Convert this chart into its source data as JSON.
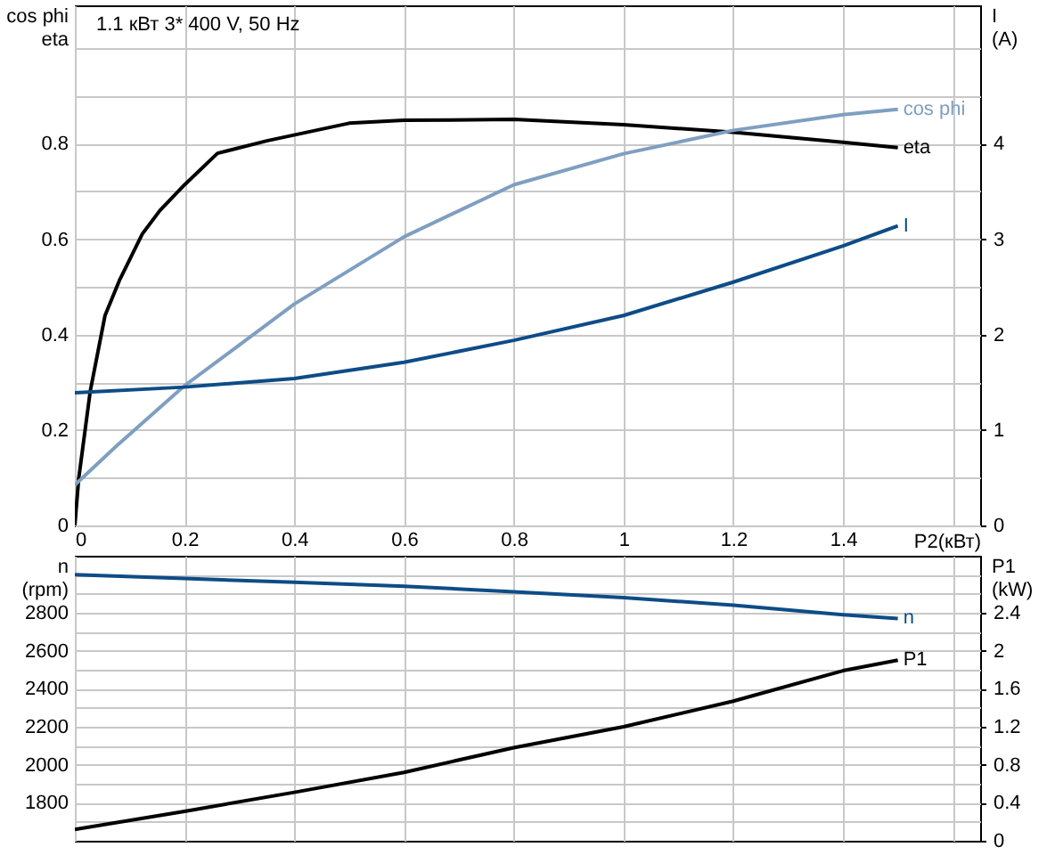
{
  "chart_data": [
    {
      "type": "line",
      "title": "1.1 кВт   3* 400 V, 50 Hz",
      "xlabel": "P2(кВт)",
      "ylabel": "cos phi\neta",
      "y2label": "I\n(A)",
      "xlim": [
        0,
        1.65
      ],
      "xticks": [
        0,
        0.2,
        0.4,
        0.6,
        0.8,
        1,
        1.2,
        1.4,
        {
          "value": 1.6,
          "label": null
        }
      ],
      "ylim": [
        0,
        1.09
      ],
      "yticks": [
        0,
        {
          "value": 0.1,
          "label": null
        },
        0.2,
        {
          "value": 0.3,
          "label": null
        },
        0.4,
        {
          "value": 0.5,
          "label": null
        },
        0.6,
        {
          "value": 0.7,
          "label": null
        },
        0.8,
        {
          "value": 0.9,
          "label": null
        },
        {
          "value": 1,
          "label": null
        }
      ],
      "y2lim": [
        0,
        5.45
      ],
      "y2ticks": [
        0,
        1,
        2,
        3,
        4
      ],
      "grid": true,
      "series": [
        {
          "name": "eta",
          "color": "#000000",
          "x": [
            0,
            0.007,
            0.028,
            0.055,
            0.081,
            0.123,
            0.155,
            0.2,
            0.26,
            0.35,
            0.5,
            0.6,
            0.8,
            1,
            1.2,
            1.4,
            1.5
          ],
          "values": [
            0,
            0.098,
            0.281,
            0.44,
            0.513,
            0.611,
            0.66,
            0.714,
            0.78,
            0.806,
            0.843,
            0.849,
            0.851,
            0.84,
            0.824,
            0.803,
            0.792
          ]
        },
        {
          "name": "cos phi",
          "color": "#7f9fc1",
          "x": [
            0,
            0.08,
            0.2,
            0.4,
            0.6,
            0.8,
            1,
            1.2,
            1.4,
            1.5
          ],
          "values": [
            0.085,
            0.171,
            0.293,
            0.464,
            0.605,
            0.714,
            0.779,
            0.828,
            0.861,
            0.872
          ]
        },
        {
          "name": "I",
          "color": "#0d4c87",
          "axis": "y2",
          "x": [
            0,
            0.2,
            0.4,
            0.6,
            0.8,
            1,
            1.2,
            1.4,
            1.5
          ],
          "values": [
            1.39,
            1.45,
            1.54,
            1.71,
            1.94,
            2.2,
            2.55,
            2.93,
            3.14
          ]
        }
      ]
    },
    {
      "type": "line",
      "ylabel": "n\n(rpm)",
      "y2label": "P1\n(kW)",
      "xlim": [
        0,
        1.65
      ],
      "xticks": [
        0,
        0.2,
        0.4,
        0.6,
        0.8,
        1,
        1.2,
        1.4,
        {
          "value": 1.6,
          "label": null
        }
      ],
      "ylim": [
        1600,
        3100
      ],
      "yticks": [
        {
          "value": 1700,
          "label": null
        },
        1800,
        {
          "value": 1900,
          "label": null
        },
        2000,
        {
          "value": 2100,
          "label": null
        },
        2200,
        {
          "value": 2300,
          "label": null
        },
        2400,
        {
          "value": 2500,
          "label": null
        },
        2600,
        {
          "value": 2700,
          "label": null
        },
        2800,
        {
          "value": 2900,
          "label": null
        },
        {
          "value": 3000,
          "label": null
        }
      ],
      "y2lim": [
        0,
        3
      ],
      "y2ticks": [
        0,
        0.4,
        0.8,
        1.2,
        1.6,
        2,
        2.4
      ],
      "grid": true,
      "tick_labels": "y",
      "series": [
        {
          "name": "n",
          "color": "#0d4c87",
          "x": [
            0,
            0.2,
            0.4,
            0.6,
            0.8,
            1,
            1.2,
            1.4,
            1.5
          ],
          "values": [
            3000,
            2980,
            2960,
            2940,
            2910,
            2880,
            2840,
            2790,
            2770
          ]
        },
        {
          "name": "P1",
          "color": "#000000",
          "axis": "y2",
          "x": [
            0,
            0.2,
            0.4,
            0.6,
            0.8,
            1,
            1.2,
            1.4,
            1.5
          ],
          "values": [
            0.12,
            0.31,
            0.51,
            0.72,
            0.98,
            1.2,
            1.47,
            1.79,
            1.9
          ]
        }
      ]
    }
  ]
}
